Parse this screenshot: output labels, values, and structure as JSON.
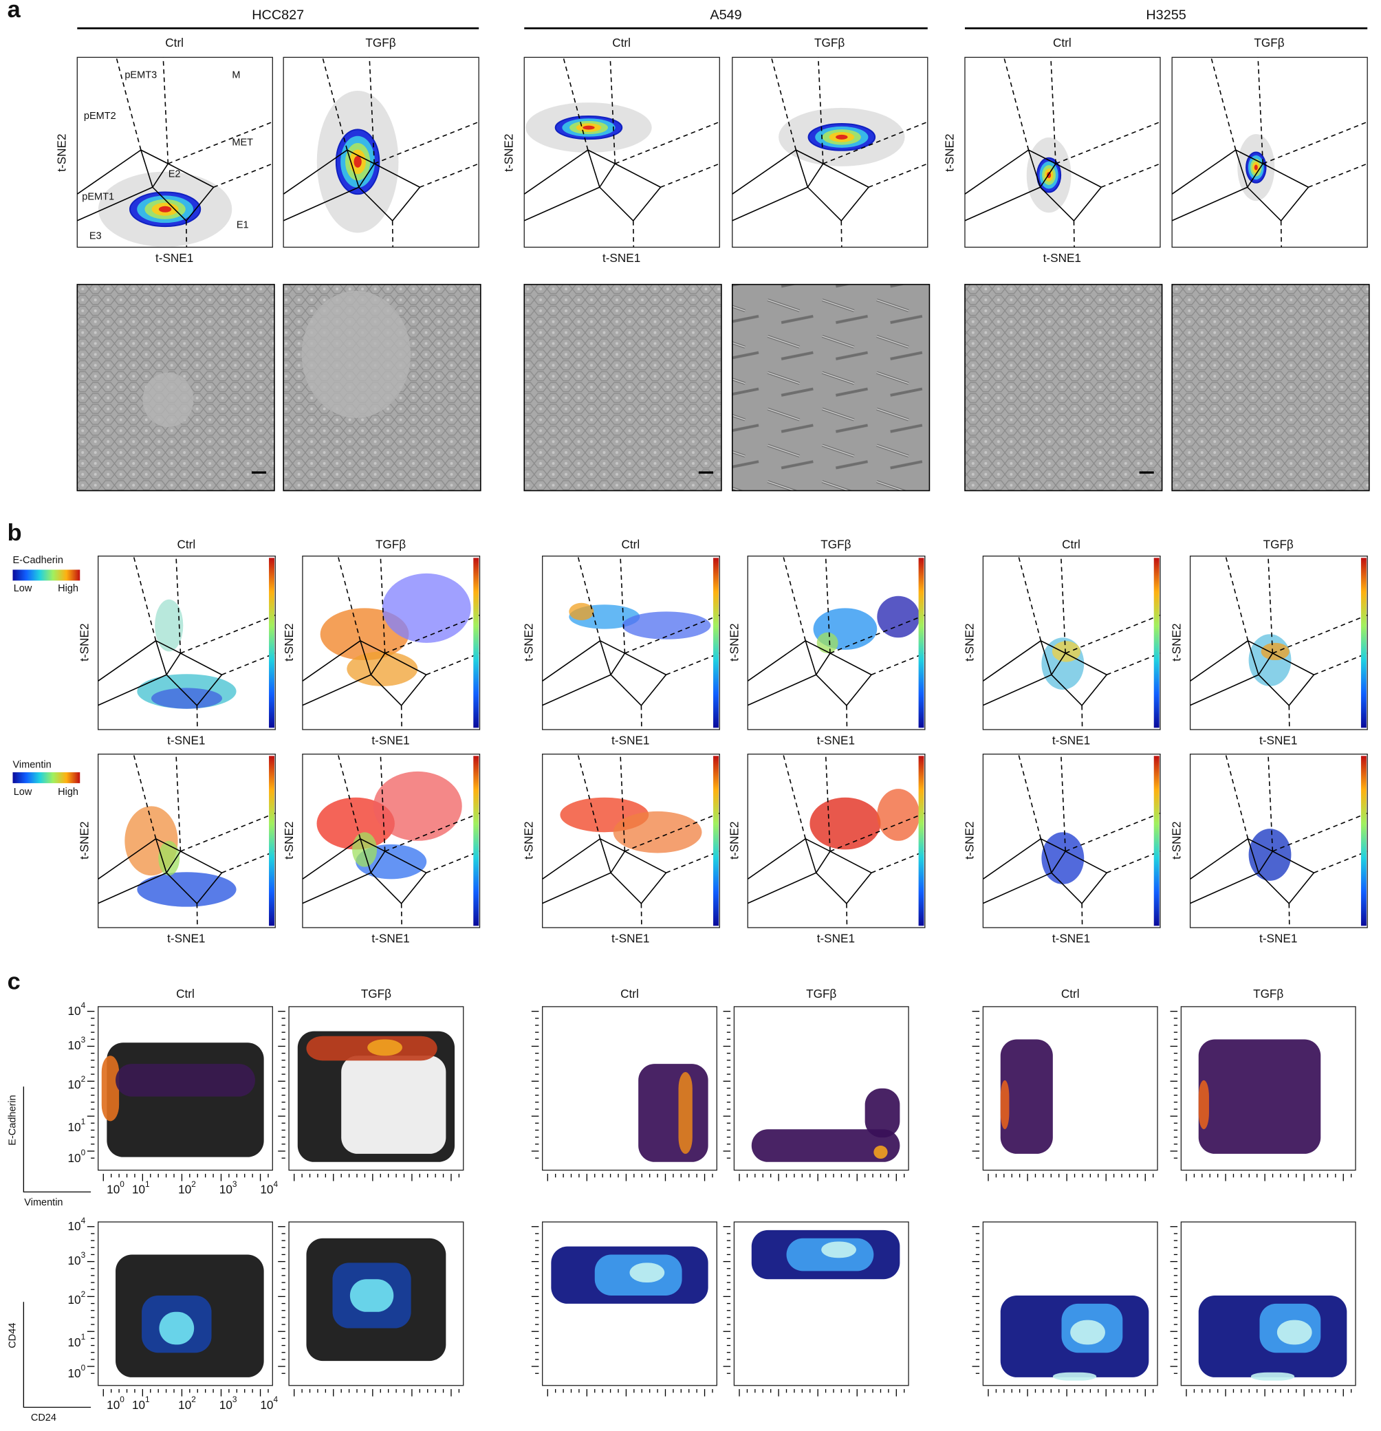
{
  "panel_labels": [
    "a",
    "b",
    "c"
  ],
  "cell_lines": [
    "HCC827",
    "A549",
    "H3255"
  ],
  "conditions": [
    "Ctrl",
    "TGFβ"
  ],
  "tsne_axes": {
    "x": "t-SNE1",
    "y": "t-SNE2"
  },
  "regions": [
    "pEMT3",
    "M",
    "pEMT2",
    "MET",
    "E2",
    "pEMT1",
    "E3",
    "E1"
  ],
  "colorbars": [
    {
      "marker": "E-Cadherin",
      "low": "Low",
      "high": "High"
    },
    {
      "marker": "Vimentin",
      "low": "Low",
      "high": "High"
    }
  ],
  "flow_rows": [
    {
      "y": "E-Cadherin",
      "x": "Vimentin"
    },
    {
      "y": "CD44",
      "x": "CD24"
    }
  ],
  "log_ticks": [
    [
      "10",
      "0"
    ],
    [
      "10",
      "1"
    ],
    [
      "10",
      "2"
    ],
    [
      "10",
      "3"
    ],
    [
      "10",
      "4"
    ]
  ]
}
